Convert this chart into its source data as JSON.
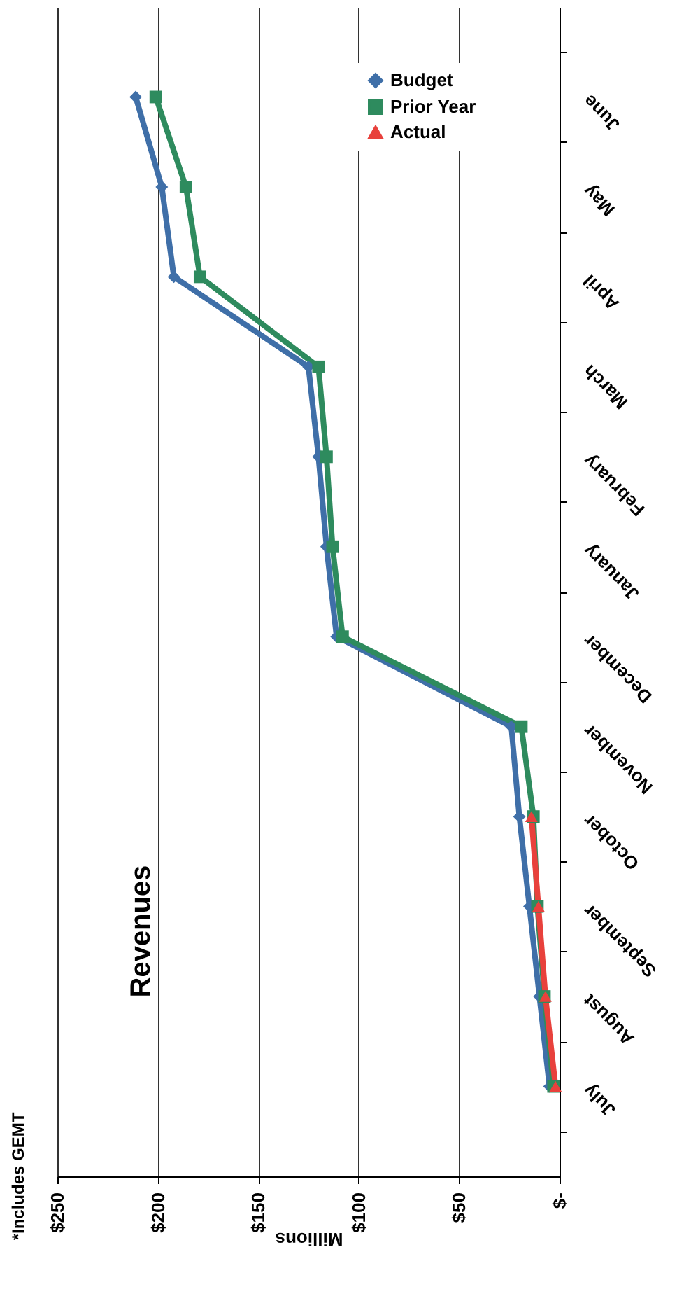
{
  "chart_data": {
    "type": "line",
    "orientation": "horizontal",
    "title": "Revenues",
    "xlabel": "Millions",
    "annotations": [
      "*Includes GEMT"
    ],
    "categories": [
      "June",
      "May",
      "April",
      "March",
      "February",
      "January",
      "December",
      "November",
      "October",
      "September",
      "August",
      "July"
    ],
    "series": [
      {
        "name": "Budget",
        "color": "#3f6fa8",
        "marker": "diamond",
        "values": [
          211,
          198,
          192,
          125,
          120,
          116,
          111,
          24,
          20,
          15,
          10,
          5
        ]
      },
      {
        "name": "Prior Year",
        "color": "#2e8b5e",
        "marker": "square",
        "values": [
          201,
          186,
          179,
          120,
          116,
          113,
          108,
          19,
          13,
          11,
          7.5,
          3
        ]
      },
      {
        "name": "Actual",
        "color": "#e8413c",
        "marker": "triangle",
        "values": [
          null,
          null,
          null,
          null,
          null,
          null,
          null,
          null,
          14,
          10.5,
          7,
          2
        ]
      }
    ],
    "xlim": [
      250,
      0
    ],
    "xticks": [
      {
        "value": 250,
        "label": "$250"
      },
      {
        "value": 200,
        "label": "$200"
      },
      {
        "value": 150,
        "label": "$150"
      },
      {
        "value": 100,
        "label": "$100"
      },
      {
        "value": 50,
        "label": "$50"
      },
      {
        "value": 0,
        "label": "$-"
      }
    ],
    "grid": "x",
    "legend": "top right",
    "line_style": "solid"
  }
}
